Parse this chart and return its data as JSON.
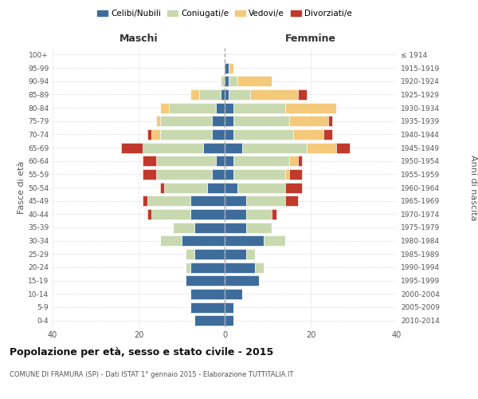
{
  "age_groups": [
    "0-4",
    "5-9",
    "10-14",
    "15-19",
    "20-24",
    "25-29",
    "30-34",
    "35-39",
    "40-44",
    "45-49",
    "50-54",
    "55-59",
    "60-64",
    "65-69",
    "70-74",
    "75-79",
    "80-84",
    "85-89",
    "90-94",
    "95-99",
    "100+"
  ],
  "birth_years": [
    "2010-2014",
    "2005-2009",
    "2000-2004",
    "1995-1999",
    "1990-1994",
    "1985-1989",
    "1980-1984",
    "1975-1979",
    "1970-1974",
    "1965-1969",
    "1960-1964",
    "1955-1959",
    "1950-1954",
    "1945-1949",
    "1940-1944",
    "1935-1939",
    "1930-1934",
    "1925-1929",
    "1920-1924",
    "1915-1919",
    "≤ 1914"
  ],
  "colors": {
    "celibi": "#3e6d9c",
    "coniugati": "#c8d9b0",
    "vedovi": "#f5c97a",
    "divorziati": "#c0392b"
  },
  "maschi": {
    "celibi": [
      7,
      8,
      8,
      9,
      8,
      7,
      10,
      7,
      8,
      8,
      4,
      3,
      2,
      5,
      3,
      3,
      2,
      1,
      0,
      0,
      0
    ],
    "coniugati": [
      0,
      0,
      0,
      0,
      1,
      2,
      5,
      5,
      9,
      10,
      10,
      13,
      14,
      14,
      12,
      12,
      11,
      5,
      1,
      0,
      0
    ],
    "vedovi": [
      0,
      0,
      0,
      0,
      0,
      0,
      0,
      0,
      0,
      0,
      0,
      0,
      0,
      0,
      2,
      1,
      2,
      2,
      0,
      0,
      0
    ],
    "divorziati": [
      0,
      0,
      0,
      0,
      0,
      0,
      0,
      0,
      1,
      1,
      1,
      3,
      3,
      5,
      1,
      0,
      0,
      0,
      0,
      0,
      0
    ]
  },
  "femmine": {
    "celibi": [
      2,
      2,
      4,
      8,
      7,
      5,
      9,
      5,
      5,
      5,
      3,
      2,
      2,
      4,
      2,
      2,
      2,
      1,
      1,
      1,
      0
    ],
    "coniugati": [
      0,
      0,
      0,
      0,
      2,
      2,
      5,
      6,
      6,
      9,
      11,
      12,
      13,
      15,
      14,
      13,
      12,
      5,
      2,
      0,
      0
    ],
    "vedovi": [
      0,
      0,
      0,
      0,
      0,
      0,
      0,
      0,
      0,
      0,
      0,
      1,
      2,
      7,
      7,
      9,
      12,
      11,
      8,
      1,
      0
    ],
    "divorziati": [
      0,
      0,
      0,
      0,
      0,
      0,
      0,
      0,
      1,
      3,
      4,
      3,
      1,
      3,
      2,
      1,
      0,
      2,
      0,
      0,
      0
    ]
  },
  "xlim": 40,
  "title": "Popolazione per età, sesso e stato civile - 2015",
  "subtitle": "COMUNE DI FRAMURA (SP) - Dati ISTAT 1° gennaio 2015 - Elaborazione TUTTITALIA.IT",
  "ylabel_left": "Fasce di età",
  "ylabel_right": "Anni di nascita",
  "legend_labels": [
    "Celibi/Nubili",
    "Coniugati/e",
    "Vedovi/e",
    "Divorziati/e"
  ],
  "maschi_label": "Maschi",
  "femmine_label": "Femmine",
  "background": "#ffffff",
  "grid_color": "#cccccc"
}
